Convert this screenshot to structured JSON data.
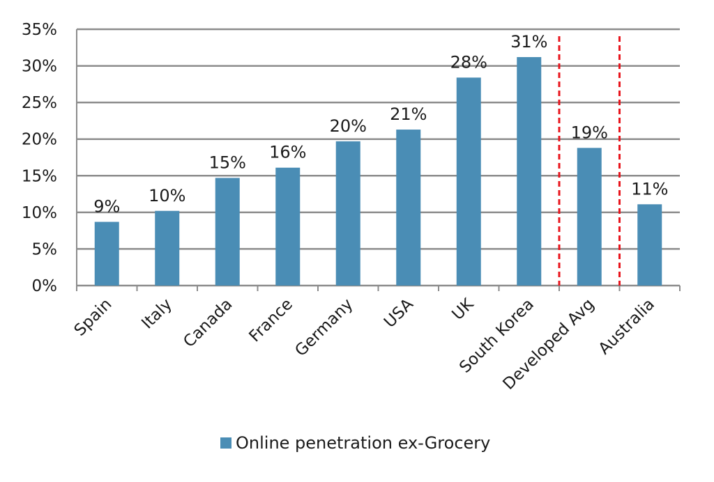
{
  "chart_data": {
    "type": "bar",
    "categories": [
      "Spain",
      "Italy",
      "Canada",
      "France",
      "Germany",
      "USA",
      "UK",
      "South Korea",
      "Developed Avg",
      "Australia"
    ],
    "series": [
      {
        "name": "Online penetration ex-Grocery",
        "values": [
          8.7,
          10.2,
          14.7,
          16.1,
          19.7,
          21.3,
          28.4,
          31.2,
          18.8,
          11.1
        ],
        "data_labels": [
          "9%",
          "10%",
          "15%",
          "16%",
          "20%",
          "21%",
          "28%",
          "31%",
          "19%",
          "11%"
        ]
      }
    ],
    "ylim": [
      0,
      35
    ],
    "yticks": [
      0,
      5,
      10,
      15,
      20,
      25,
      30,
      35
    ],
    "ytick_labels": [
      "0%",
      "5%",
      "10%",
      "15%",
      "20%",
      "25%",
      "30%",
      "35%"
    ],
    "xlabel": "",
    "ylabel": "",
    "grid": true,
    "legend_position": "bottom",
    "separators_after_categories": [
      "South Korea",
      "Developed Avg"
    ],
    "colors": {
      "bar": "#4a8db5",
      "grid": "#8c8c8c",
      "separator": "#e8141c"
    }
  }
}
